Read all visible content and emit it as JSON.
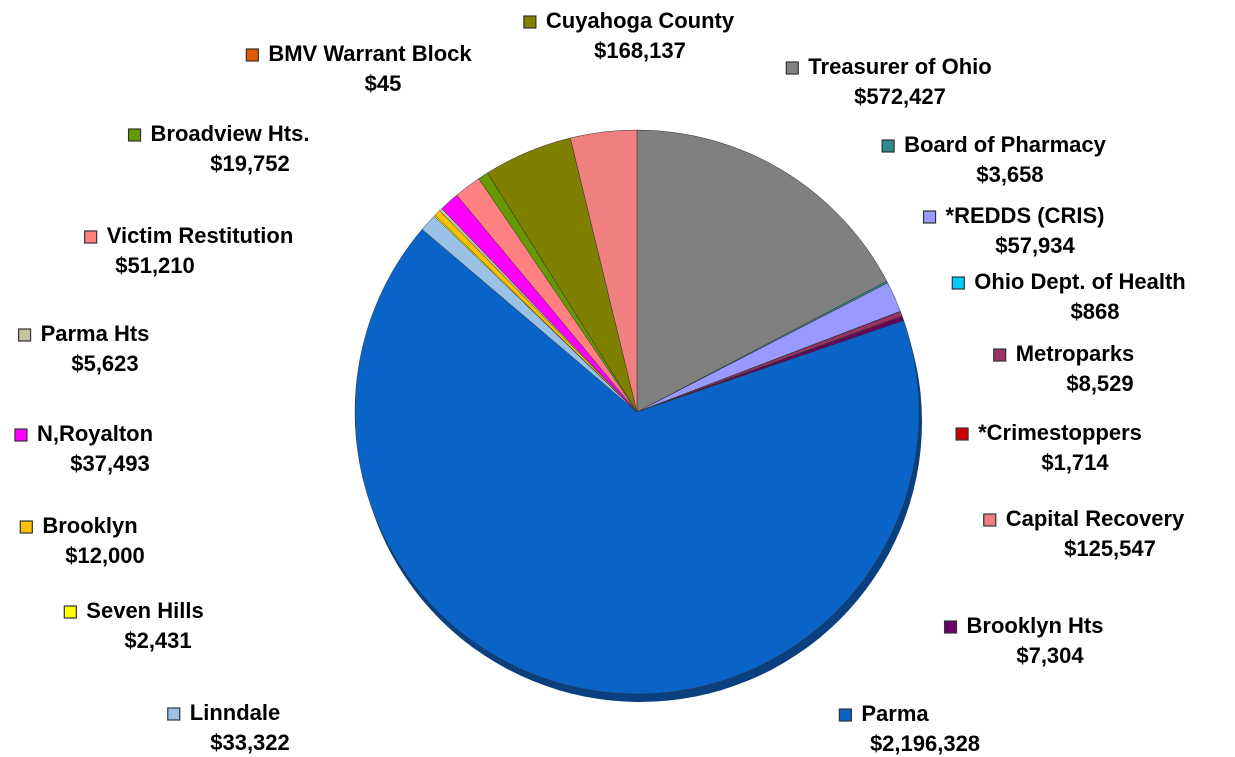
{
  "chart_data": {
    "type": "pie",
    "categories": [
      "Treasurer of Ohio",
      "Board of Pharmacy",
      "*REDDS (CRIS)",
      "Ohio Dept. of Health",
      "Metroparks",
      "*Crimestoppers",
      "Brooklyn Hts",
      "Parma",
      "Linndale",
      "Seven Hills",
      "Brooklyn",
      "Parma Hts",
      "N,Royalton",
      "Victim Restitution",
      "Broadview Hts.",
      "BMV Warrant Block",
      "Cuyahoga County",
      "Capital Recovery"
    ],
    "values": [
      572427,
      3658,
      57934,
      868,
      8529,
      1714,
      7304,
      2196328,
      33322,
      2431,
      12000,
      5623,
      37493,
      51210,
      19752,
      45,
      168137,
      125547
    ],
    "value_labels": [
      "$572,427",
      "$3,658",
      "$57,934",
      "$868",
      "$8,529",
      "$1,714",
      "$7,304",
      "$2,196,328",
      "$33,322",
      "$2,431",
      "$12,000",
      "$5,623",
      "$37,493",
      "$51,210",
      "$19,752",
      "$45",
      "$168,137",
      "$125,547"
    ],
    "colors": [
      "#808080",
      "#2e8b8b",
      "#9999ff",
      "#00ccff",
      "#993366",
      "#cc0000",
      "#660066",
      "#0a64c8",
      "#99c2e6",
      "#ffff00",
      "#ffc000",
      "#c4c4a0",
      "#ff00ff",
      "#ff8080",
      "#669900",
      "#e05a00",
      "#808000",
      "#f08080"
    ]
  }
}
